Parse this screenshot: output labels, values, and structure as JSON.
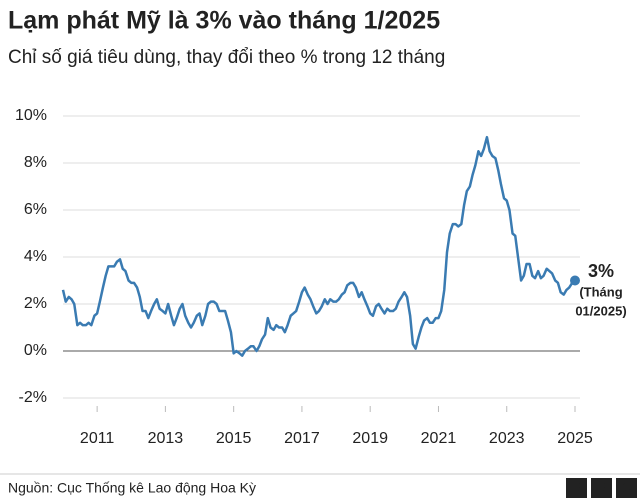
{
  "chart_data": {
    "type": "line",
    "title": "Lạm phát Mỹ là 3% vào tháng 1/2025",
    "subtitle": "Chỉ số giá tiêu dùng, thay đổi theo % trong 12 tháng",
    "source": "Nguồn: Cục Thống kê Lao động Hoa Kỳ",
    "logo": [
      "B",
      "B",
      "C"
    ],
    "annotation": [
      "3%",
      "(Tháng",
      "01/2025)"
    ],
    "xlim": [
      2010,
      2025
    ],
    "xticks": [
      2011,
      2013,
      2015,
      2017,
      2019,
      2021,
      2023,
      2025
    ],
    "ylim": [
      -2,
      10
    ],
    "yticks": [
      {
        "value": -2,
        "label": "-2%"
      },
      {
        "value": 0,
        "label": "0%"
      },
      {
        "value": 2,
        "label": "2%"
      },
      {
        "value": 4,
        "label": "4%"
      },
      {
        "value": 6,
        "label": "6%"
      },
      {
        "value": 8,
        "label": "8%"
      },
      {
        "value": 10,
        "label": "10%"
      }
    ],
    "grid": true,
    "x": [
      2010,
      2010.08,
      2010.17,
      2010.25,
      2010.33,
      2010.42,
      2010.5,
      2010.58,
      2010.67,
      2010.75,
      2010.83,
      2010.92,
      2011,
      2011.08,
      2011.17,
      2011.25,
      2011.33,
      2011.42,
      2011.5,
      2011.58,
      2011.67,
      2011.75,
      2011.83,
      2011.92,
      2012,
      2012.08,
      2012.17,
      2012.25,
      2012.33,
      2012.42,
      2012.5,
      2012.58,
      2012.67,
      2012.75,
      2012.83,
      2012.92,
      2013,
      2013.08,
      2013.17,
      2013.25,
      2013.33,
      2013.42,
      2013.5,
      2013.58,
      2013.67,
      2013.75,
      2013.83,
      2013.92,
      2014,
      2014.08,
      2014.17,
      2014.25,
      2014.33,
      2014.42,
      2014.5,
      2014.58,
      2014.67,
      2014.75,
      2014.83,
      2014.92,
      2015,
      2015.08,
      2015.17,
      2015.25,
      2015.33,
      2015.42,
      2015.5,
      2015.58,
      2015.67,
      2015.75,
      2015.83,
      2015.92,
      2016,
      2016.08,
      2016.17,
      2016.25,
      2016.33,
      2016.42,
      2016.5,
      2016.58,
      2016.67,
      2016.75,
      2016.83,
      2016.92,
      2017,
      2017.08,
      2017.17,
      2017.25,
      2017.33,
      2017.42,
      2017.5,
      2017.58,
      2017.67,
      2017.75,
      2017.83,
      2017.92,
      2018,
      2018.08,
      2018.17,
      2018.25,
      2018.33,
      2018.42,
      2018.5,
      2018.58,
      2018.67,
      2018.75,
      2018.83,
      2018.92,
      2019,
      2019.08,
      2019.17,
      2019.25,
      2019.33,
      2019.42,
      2019.5,
      2019.58,
      2019.67,
      2019.75,
      2019.83,
      2019.92,
      2020,
      2020.08,
      2020.17,
      2020.25,
      2020.33,
      2020.42,
      2020.5,
      2020.58,
      2020.67,
      2020.75,
      2020.83,
      2020.92,
      2021,
      2021.08,
      2021.17,
      2021.25,
      2021.33,
      2021.42,
      2021.5,
      2021.58,
      2021.67,
      2021.75,
      2021.83,
      2021.92,
      2022,
      2022.08,
      2022.17,
      2022.25,
      2022.33,
      2022.42,
      2022.5,
      2022.58,
      2022.67,
      2022.75,
      2022.83,
      2022.92,
      2023,
      2023.08,
      2023.17,
      2023.25,
      2023.33,
      2023.42,
      2023.5,
      2023.58,
      2023.67,
      2023.75,
      2023.83,
      2023.92,
      2024,
      2024.08,
      2024.17,
      2024.25,
      2024.33,
      2024.42,
      2024.5,
      2024.58,
      2024.67,
      2024.75,
      2024.83,
      2024.92,
      2025
    ],
    "series": [
      {
        "color": "#3a7bb2",
        "values": [
          2.6,
          2.1,
          2.3,
          2.2,
          2.0,
          1.1,
          1.2,
          1.1,
          1.1,
          1.2,
          1.1,
          1.5,
          1.6,
          2.1,
          2.7,
          3.2,
          3.6,
          3.6,
          3.6,
          3.8,
          3.9,
          3.5,
          3.4,
          3.0,
          2.9,
          2.9,
          2.7,
          2.3,
          1.7,
          1.7,
          1.4,
          1.7,
          2.0,
          2.2,
          1.8,
          1.7,
          1.6,
          2.0,
          1.5,
          1.1,
          1.4,
          1.8,
          2.0,
          1.5,
          1.2,
          1.0,
          1.2,
          1.5,
          1.6,
          1.1,
          1.5,
          2.0,
          2.1,
          2.1,
          2.0,
          1.7,
          1.7,
          1.7,
          1.3,
          0.8,
          -0.1,
          0.0,
          -0.1,
          -0.2,
          0.0,
          0.1,
          0.2,
          0.2,
          0.0,
          0.2,
          0.5,
          0.7,
          1.4,
          1.0,
          0.9,
          1.1,
          1.0,
          1.0,
          0.8,
          1.1,
          1.5,
          1.6,
          1.7,
          2.1,
          2.5,
          2.7,
          2.4,
          2.2,
          1.9,
          1.6,
          1.7,
          1.9,
          2.2,
          2.0,
          2.2,
          2.1,
          2.1,
          2.2,
          2.4,
          2.5,
          2.8,
          2.9,
          2.9,
          2.7,
          2.3,
          2.5,
          2.2,
          1.9,
          1.6,
          1.5,
          1.9,
          2.0,
          1.8,
          1.6,
          1.8,
          1.7,
          1.7,
          1.8,
          2.1,
          2.3,
          2.5,
          2.3,
          1.5,
          0.3,
          0.1,
          0.6,
          1.0,
          1.3,
          1.4,
          1.2,
          1.2,
          1.4,
          1.4,
          1.7,
          2.6,
          4.2,
          5.0,
          5.4,
          5.4,
          5.3,
          5.4,
          6.2,
          6.8,
          7.0,
          7.5,
          7.9,
          8.5,
          8.3,
          8.6,
          9.1,
          8.5,
          8.3,
          8.2,
          7.7,
          7.1,
          6.5,
          6.4,
          6.0,
          5.0,
          4.9,
          4.0,
          3.0,
          3.2,
          3.7,
          3.7,
          3.2,
          3.1,
          3.4,
          3.1,
          3.2,
          3.5,
          3.4,
          3.3,
          3.0,
          2.9,
          2.5,
          2.4,
          2.6,
          2.7,
          2.9,
          3.0
        ]
      }
    ]
  }
}
